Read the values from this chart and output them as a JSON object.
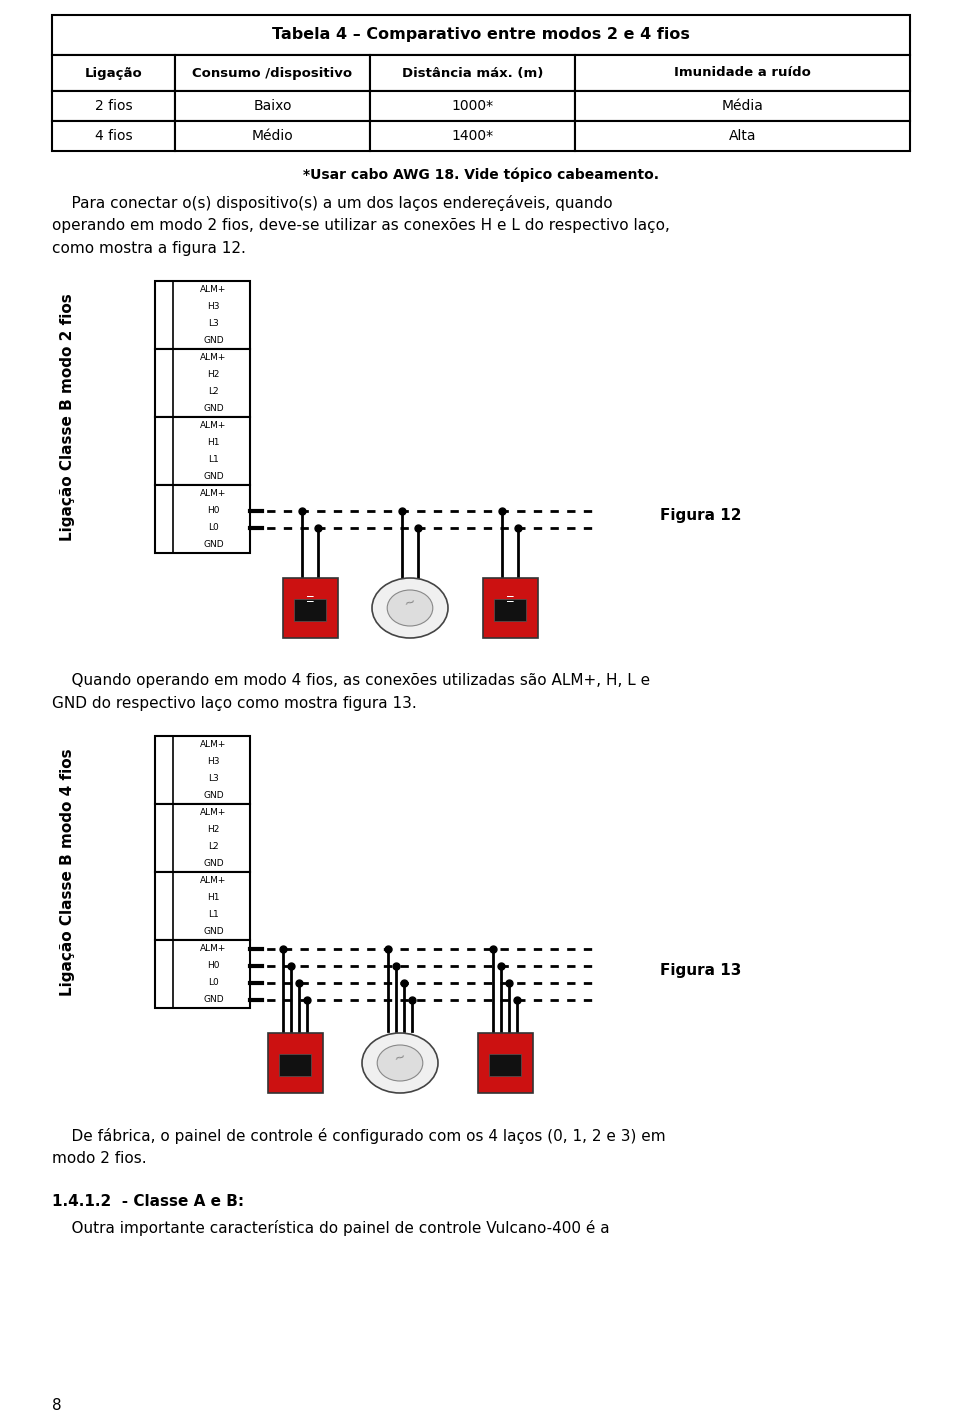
{
  "title_table": "Tabela 4 – Comparativo entre modos 2 e 4 fios",
  "table_headers": [
    "Ligação",
    "Consumo /dispositivo",
    "Distância máx. (m)",
    "Imunidade a ruído"
  ],
  "table_rows": [
    [
      "2 fios",
      "Baixo",
      "1000*",
      "Média"
    ],
    [
      "4 fios",
      "Médio",
      "1400*",
      "Alta"
    ]
  ],
  "footnote": "*Usar cabo AWG 18. Vide tópico cabeamento.",
  "label_fig12_rotated": "Ligação Classe B modo 2 fios",
  "label_fig13_rotated": "Ligação Classe B modo 4 fios",
  "terminal_labels": [
    "ALM+",
    "H3",
    "L3",
    "GND",
    "ALM+",
    "H2",
    "L2",
    "GND",
    "ALM+",
    "H1",
    "L1",
    "GND",
    "ALM+",
    "H0",
    "L0",
    "GND"
  ],
  "fig12_label": "Figura 12",
  "fig13_label": "Figura 13",
  "para2_lines": [
    "    Quando operando em modo 4 fios, as conexões utilizadas são ALM+, H, L e",
    "GND do respectivo laço como mostra figura 13."
  ],
  "para3_lines": [
    "    De fábrica, o painel de controle é configurado com os 4 laços (0, 1, 2 e 3) em",
    "modo 2 fios."
  ],
  "section_title": "1.4.1.2  - Classe A e B:",
  "section_text": "    Outra importante característica do painel de controle Vulcano-400 é a",
  "page_num": "8",
  "bg_color": "#ffffff",
  "font_family": "DejaVu Sans"
}
